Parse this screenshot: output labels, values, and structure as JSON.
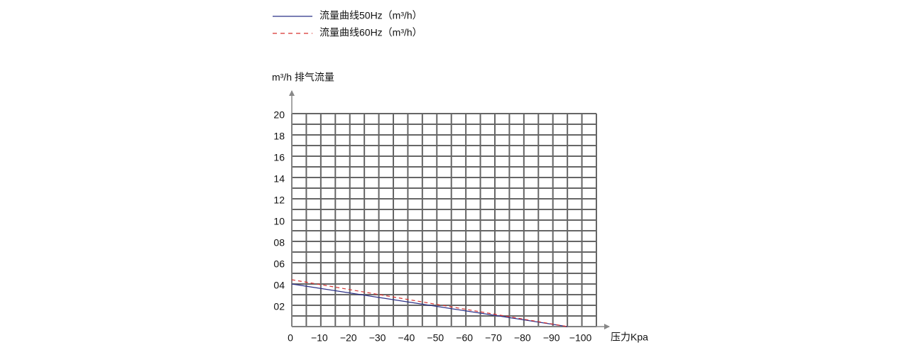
{
  "chart_data": {
    "type": "line",
    "y_axis_title": "m³/h 排气流量",
    "x_axis_title": "压力Kpa",
    "x": [
      0,
      -95
    ],
    "series": [
      {
        "name": "流量曲线50Hz（m³/h）",
        "color": "#2b3088",
        "dash": "solid",
        "values": [
          4.0,
          0
        ]
      },
      {
        "name": "流量曲线60Hz（m³/h）",
        "color": "#d8312f",
        "dash": "dashed",
        "values": [
          4.4,
          0
        ]
      }
    ],
    "xlim": [
      0,
      -105
    ],
    "ylim": [
      0,
      20
    ],
    "xticks": [
      0,
      {
        "value": -10,
        "label": "−10"
      },
      {
        "value": -20,
        "label": "−20"
      },
      {
        "value": -30,
        "label": "−30"
      },
      {
        "value": -40,
        "label": "−40"
      },
      {
        "value": -50,
        "label": "−50"
      },
      {
        "value": -60,
        "label": "−60"
      },
      {
        "value": -70,
        "label": "−70"
      },
      {
        "value": -80,
        "label": "−80"
      },
      {
        "value": -90,
        "label": "−90"
      },
      {
        "value": -100,
        "label": "−100"
      }
    ],
    "yticks": [
      {
        "value": 2,
        "label": "02"
      },
      {
        "value": 4,
        "label": "04"
      },
      {
        "value": 6,
        "label": "06"
      },
      {
        "value": 8,
        "label": "08"
      },
      10,
      12,
      14,
      16,
      18,
      20
    ],
    "x_grid_lines": [
      0,
      -5,
      -10,
      -15,
      -20,
      -25,
      -30,
      -35,
      -40,
      -45,
      -50,
      -55,
      -60,
      -65,
      -70,
      -75,
      -80,
      -85,
      -90,
      -95,
      -100,
      -105
    ],
    "y_grid_lines": [
      0,
      1,
      2,
      3,
      4,
      5,
      6,
      7,
      8,
      9,
      10,
      11,
      12,
      13,
      14,
      15,
      16,
      17,
      18,
      19,
      20
    ],
    "grid_color": "#666666"
  }
}
